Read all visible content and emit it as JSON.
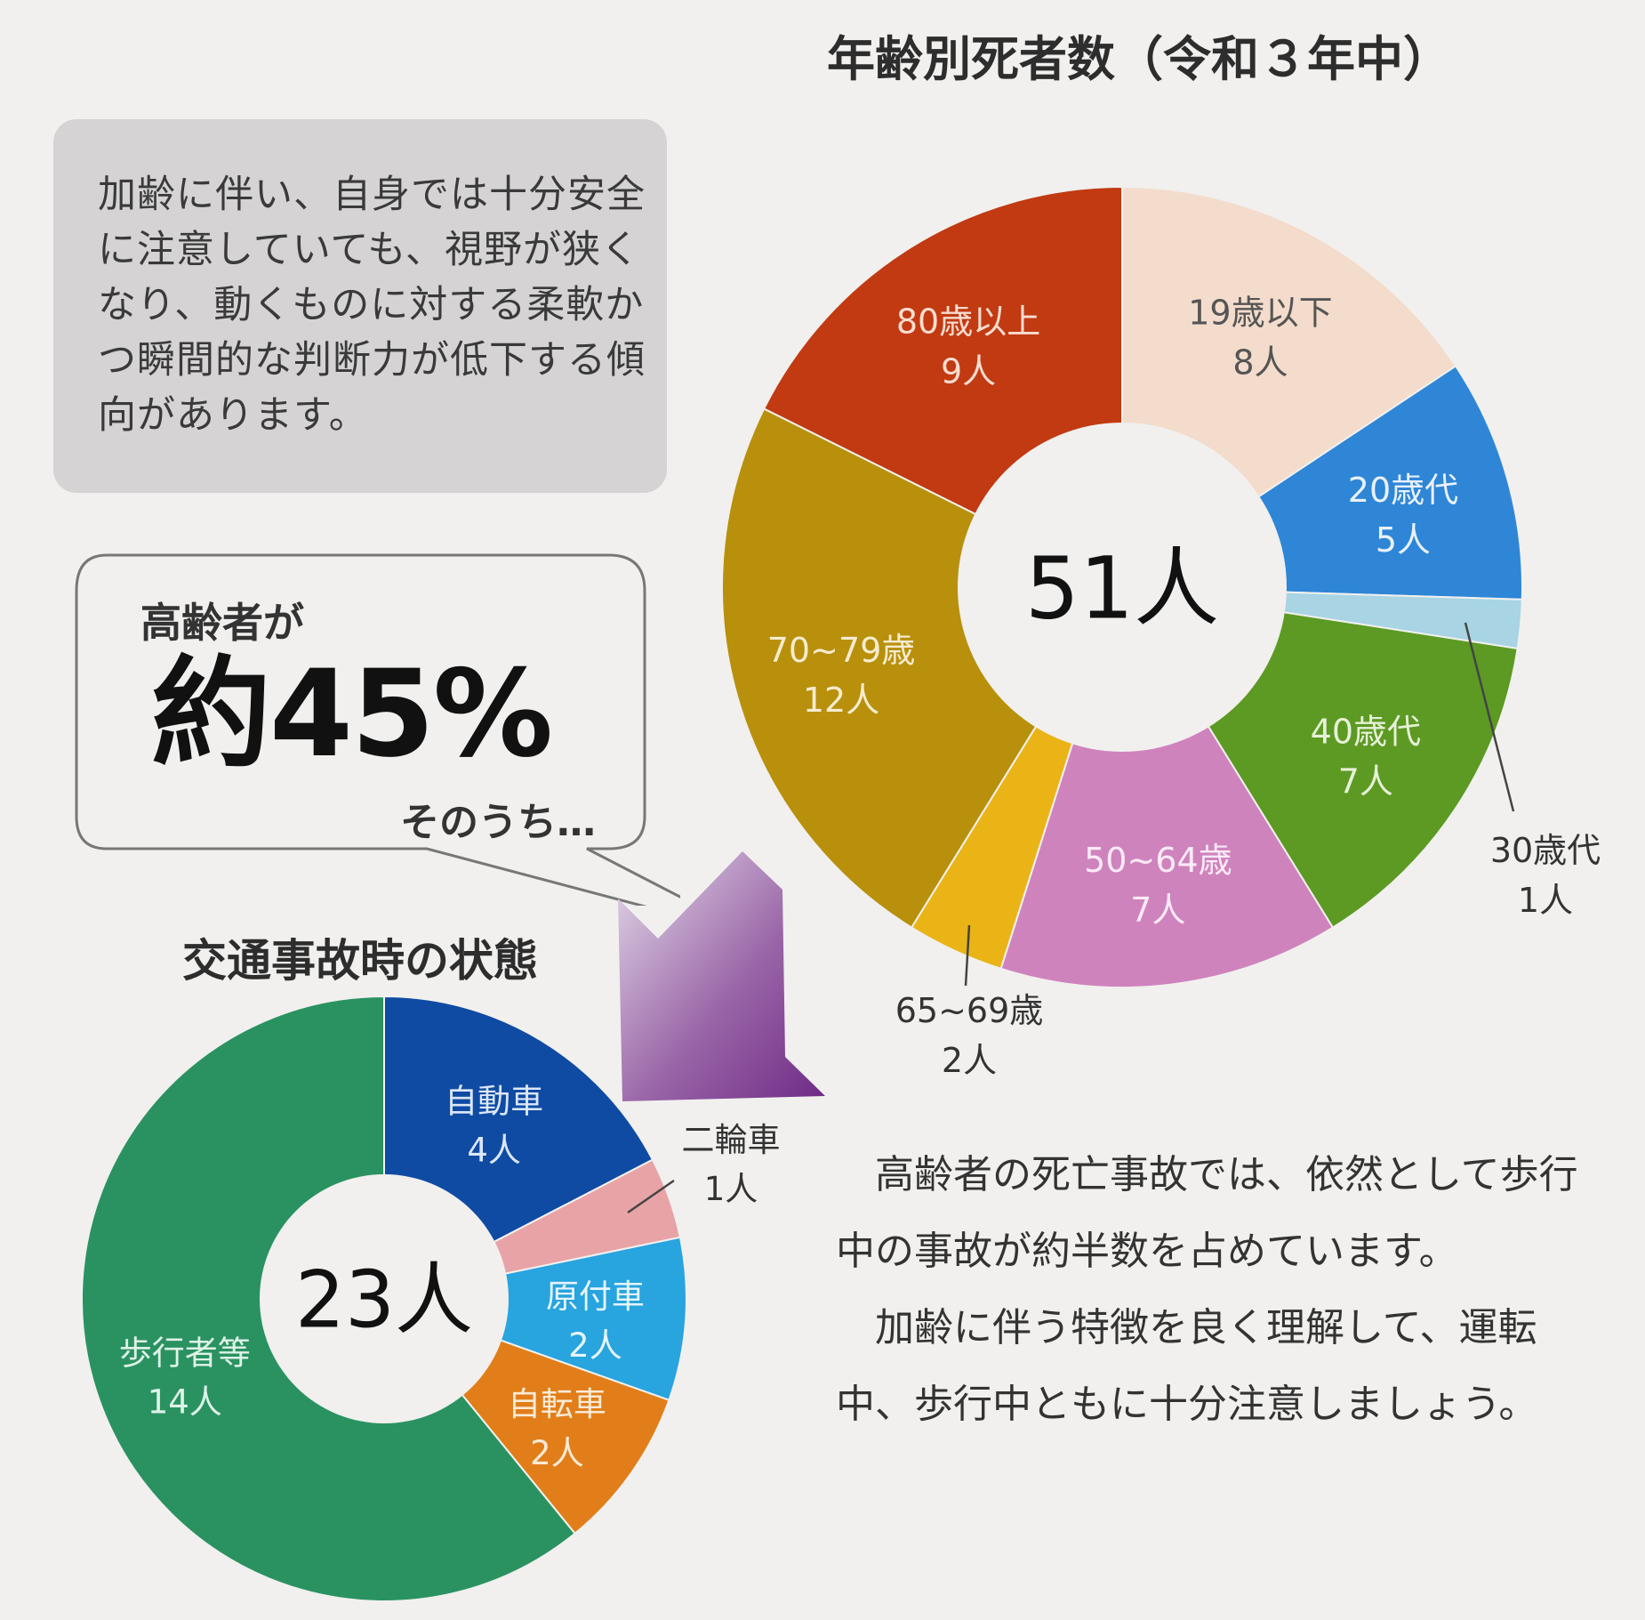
{
  "note": {
    "text": "加齢に伴い、自身では十分安全に注意していても、視野が狭くなり、動くものに対する柔軟かつ瞬間的な判断力が低下する傾向があります。"
  },
  "callout": {
    "prefix": "高齢者が",
    "big": "約45%",
    "suffix": "そのうち…"
  },
  "conclusion": {
    "paragraph1": "高齢者の死亡事故では、依然として歩行中の事故が約半数を占めています。",
    "paragraph2": "加齢に伴う特徴を良く理解して、運転中、歩行中ともに十分注意しましょう。"
  },
  "chart_data": [
    {
      "type": "pie",
      "title": "年齢別死者数（令和３年中）",
      "center_label": "51人",
      "slices": [
        {
          "label": "19歳以下",
          "value": 8,
          "value_label": "8人",
          "color": "#f3dccb",
          "text_color": "#555555"
        },
        {
          "label": "20歳代",
          "value": 5,
          "value_label": "5人",
          "color": "#2f86d6",
          "text_color": "#e9f1fa"
        },
        {
          "label": "30歳代",
          "value": 1,
          "value_label": "1人",
          "color": "#a8d4e3",
          "text_color": "#333333"
        },
        {
          "label": "40歳代",
          "value": 7,
          "value_label": "7人",
          "color": "#5c9a23",
          "text_color": "#e7f0d8"
        },
        {
          "label": "50~64歳",
          "value": 7,
          "value_label": "7人",
          "color": "#cf83bd",
          "text_color": "#fbeaf6"
        },
        {
          "label": "65~69歳",
          "value": 2,
          "value_label": "2人",
          "color": "#eab417",
          "text_color": "#333333"
        },
        {
          "label": "70~79歳",
          "value": 12,
          "value_label": "12人",
          "color": "#b8900c",
          "text_color": "#f6ecd0"
        },
        {
          "label": "80歳以上",
          "value": 9,
          "value_label": "9人",
          "color": "#c13a12",
          "text_color": "#f8dccf"
        }
      ]
    },
    {
      "type": "pie",
      "title": "交通事故時の状態",
      "center_label": "23人",
      "slices": [
        {
          "label": "自動車",
          "value": 4,
          "value_label": "4人",
          "color": "#0f4ba3",
          "text_color": "#dbe7f8"
        },
        {
          "label": "二輪車",
          "value": 1,
          "value_label": "1人",
          "color": "#e8a3a7",
          "text_color": "#333333"
        },
        {
          "label": "原付車",
          "value": 2,
          "value_label": "2人",
          "color": "#28a4df",
          "text_color": "#e6f5fc"
        },
        {
          "label": "自転車",
          "value": 2,
          "value_label": "2人",
          "color": "#e17e1a",
          "text_color": "#fbead6"
        },
        {
          "label": "歩行者等",
          "value": 14,
          "value_label": "14人",
          "color": "#2a9261",
          "text_color": "#def2e8"
        }
      ]
    }
  ]
}
